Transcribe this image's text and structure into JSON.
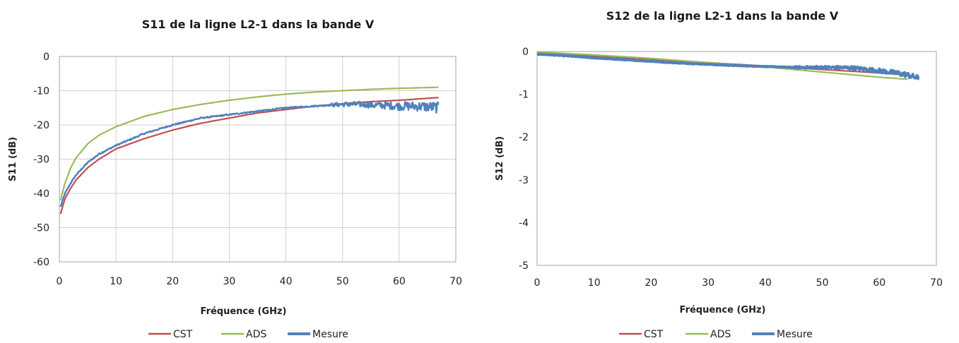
{
  "colors": {
    "CST": "#c0504d",
    "ADS": "#9bbb59",
    "Mesure": "#4f81bd",
    "grid": "#d0d0d0"
  },
  "chart_data": [
    {
      "type": "line",
      "title": "S11 de la ligne L2-1 dans la bande V",
      "xlabel": "Fréquence   (GHz)",
      "ylabel": "S11 (dB)",
      "xlim": [
        0,
        70
      ],
      "ylim": [
        -60,
        0
      ],
      "xticks": [
        0,
        10,
        20,
        30,
        40,
        50,
        60,
        70
      ],
      "yticks": [
        0,
        -10,
        -20,
        -30,
        -40,
        -50,
        -60
      ],
      "grid": true,
      "legend_position": "bottom",
      "series": [
        {
          "name": "CST",
          "color": "#c0504d",
          "x": [
            0.2,
            1,
            2,
            3,
            5,
            7,
            10,
            15,
            20,
            25,
            30,
            35,
            40,
            45,
            50,
            55,
            60,
            67
          ],
          "y": [
            -46,
            -41.5,
            -38.5,
            -36,
            -32.5,
            -30,
            -27,
            -24,
            -21.5,
            -19.5,
            -18,
            -16.5,
            -15.5,
            -14.5,
            -13.8,
            -13.2,
            -12.8,
            -12
          ]
        },
        {
          "name": "ADS",
          "color": "#9bbb59",
          "x": [
            0.2,
            1,
            2,
            3,
            5,
            7,
            10,
            15,
            20,
            25,
            30,
            35,
            40,
            45,
            50,
            55,
            60,
            67
          ],
          "y": [
            -42,
            -37,
            -32.5,
            -29.5,
            -25.5,
            -23,
            -20.5,
            -17.5,
            -15.5,
            -14,
            -12.8,
            -11.8,
            -11,
            -10.4,
            -10,
            -9.6,
            -9.3,
            -9
          ]
        },
        {
          "name": "Mesure",
          "color": "#4f81bd",
          "x": [
            0.2,
            1,
            2,
            3,
            5,
            7,
            10,
            15,
            20,
            25,
            30,
            35,
            40,
            45,
            50,
            52,
            54,
            55,
            58,
            60,
            62,
            64,
            66,
            67
          ],
          "y": [
            -44,
            -40,
            -37,
            -34.5,
            -31,
            -28.5,
            -26,
            -22.5,
            -20,
            -18,
            -17,
            -16,
            -15,
            -14.5,
            -14,
            -14,
            -14,
            -14.2,
            -14.3,
            -14.5,
            -14.5,
            -14.6,
            -14.8,
            -15
          ],
          "noisy_from_x": 48,
          "noise_amplitude": 1.6
        }
      ]
    },
    {
      "type": "line",
      "title": "S12 de la ligne L2-1 dans la bande V",
      "xlabel": "Fréquence   (GHz)",
      "ylabel": "S12 (dB)",
      "xlim": [
        0,
        70
      ],
      "ylim": [
        -5,
        0
      ],
      "xticks": [
        0,
        10,
        20,
        30,
        40,
        50,
        60,
        70
      ],
      "yticks": [
        0,
        -1,
        -2,
        -3,
        -4,
        -5
      ],
      "grid": false,
      "legend_position": "bottom",
      "series": [
        {
          "name": "CST",
          "color": "#c0504d",
          "x": [
            0,
            10,
            20,
            30,
            40,
            50,
            60,
            65
          ],
          "y": [
            -0.02,
            -0.1,
            -0.18,
            -0.26,
            -0.34,
            -0.42,
            -0.5,
            -0.55
          ]
        },
        {
          "name": "ADS",
          "color": "#9bbb59",
          "x": [
            0,
            10,
            20,
            30,
            40,
            50,
            60,
            65
          ],
          "y": [
            -0.01,
            -0.08,
            -0.16,
            -0.26,
            -0.36,
            -0.48,
            -0.6,
            -0.65
          ]
        },
        {
          "name": "Mesure",
          "color": "#4f81bd",
          "x": [
            0,
            5,
            10,
            15,
            20,
            25,
            30,
            35,
            40,
            45,
            50,
            55,
            60,
            63,
            65,
            67
          ],
          "y": [
            -0.06,
            -0.1,
            -0.15,
            -0.19,
            -0.23,
            -0.27,
            -0.3,
            -0.33,
            -0.35,
            -0.37,
            -0.37,
            -0.38,
            -0.45,
            -0.5,
            -0.55,
            -0.63
          ],
          "noisy_from_x": 45,
          "noise_amplitude": 0.06
        }
      ]
    }
  ]
}
